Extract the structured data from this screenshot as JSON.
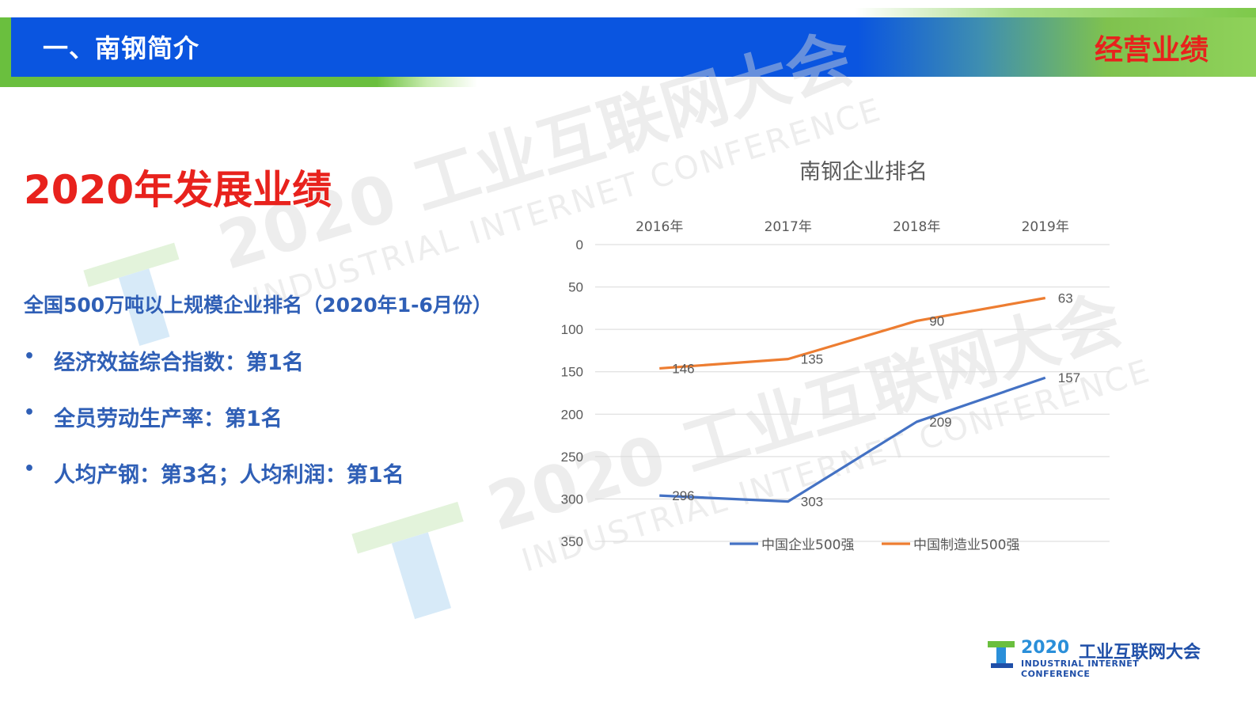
{
  "header": {
    "title": "一、南钢简介",
    "section": "经营业绩"
  },
  "watermark": {
    "line1": "2020 工业互联网大会",
    "line2": "INDUSTRIAL INTERNET CONFERENCE"
  },
  "main": {
    "title": "2020年发展业绩",
    "subtitle": "全国500万吨以上规模企业排名（2020年1-6月份）",
    "bullets": [
      "经济效益综合指数：第1名",
      "全员劳动生产率：第1名",
      "人均产钢：第3名；人均利润：第1名"
    ]
  },
  "logo": {
    "number": "2020",
    "cn": "工业互联网大会",
    "en": "INDUSTRIAL INTERNET CONFERENCE"
  },
  "chart_data": {
    "type": "line",
    "title": "南钢企业排名",
    "categories": [
      "2016年",
      "2017年",
      "2018年",
      "2019年"
    ],
    "ylim": [
      0,
      350
    ],
    "y_reversed": true,
    "yticks": [
      0,
      50,
      100,
      150,
      200,
      250,
      300,
      350
    ],
    "x_axis_position": "top",
    "grid": true,
    "legend_position": "bottom",
    "series": [
      {
        "name": "中国企业500强",
        "values": [
          296,
          303,
          209,
          157
        ],
        "color": "#4472c4"
      },
      {
        "name": "中国制造业500强",
        "values": [
          146,
          135,
          90,
          63
        ],
        "color": "#ed7d31"
      }
    ]
  }
}
